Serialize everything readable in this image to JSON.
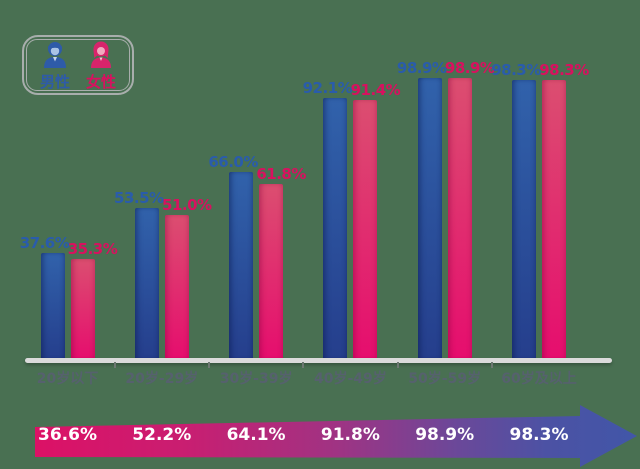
{
  "background_color": "#497052",
  "legend": {
    "male_label": "男性",
    "female_label": "女性",
    "male_color": "#2e5ba8",
    "female_color": "#d8115f",
    "border_color": "#a8aeac"
  },
  "chart_data": {
    "type": "bar",
    "categories": [
      "20岁以下",
      "20岁-29岁",
      "30岁-39岁",
      "40岁-49岁",
      "50岁-59岁",
      "60岁及以上"
    ],
    "series": [
      {
        "name": "男性",
        "values": [
          37.6,
          53.5,
          66.0,
          92.1,
          98.9,
          98.3
        ],
        "color_top": "#3162ab",
        "color_bottom": "#253e8c",
        "label_color": "#2a5cab"
      },
      {
        "name": "女性",
        "values": [
          35.3,
          51.0,
          61.8,
          91.4,
          98.9,
          98.3
        ],
        "color_top": "#db4e70",
        "color_bottom": "#e60d6e",
        "label_color": "#d8115f"
      }
    ],
    "value_suffix": "%",
    "title": "",
    "xlabel": "",
    "ylabel": "",
    "ylim": [
      0,
      105
    ],
    "grid": false,
    "legend_position": "top-left",
    "x_label_color": "#56616e",
    "axis_color": "#dbdbdb"
  },
  "trend_arrow": {
    "values": [
      "36.6%",
      "52.2%",
      "64.1%",
      "91.8%",
      "98.9%",
      "98.3%"
    ],
    "text_color": "#ffffff",
    "gradient_stops": [
      [
        0,
        "#dc1166"
      ],
      [
        0.25,
        "#c91e71"
      ],
      [
        0.5,
        "#a03383"
      ],
      [
        0.7,
        "#6b4899"
      ],
      [
        0.85,
        "#4c52a4"
      ],
      [
        1,
        "#4156a8"
      ]
    ]
  }
}
